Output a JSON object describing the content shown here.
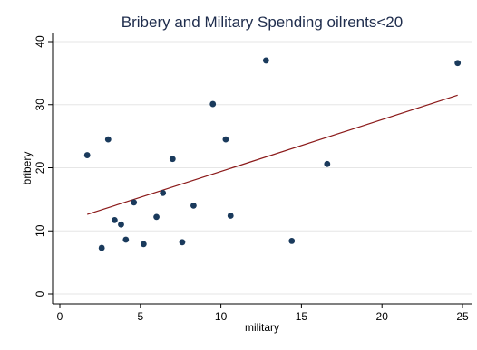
{
  "chart_data": {
    "type": "scatter",
    "title": "Bribery and Military Spending oilrents<20",
    "xlabel": "military",
    "ylabel": "bribery",
    "xlim": [
      0,
      25
    ],
    "ylim": [
      0,
      40
    ],
    "x_ticks": [
      0,
      5,
      10,
      15,
      20,
      25
    ],
    "y_ticks": [
      0,
      10,
      20,
      30,
      40
    ],
    "x_tick_labels": [
      "0",
      "5",
      "10",
      "15",
      "20",
      "25"
    ],
    "y_tick_labels": [
      "0",
      "10",
      "20",
      "30",
      "40"
    ],
    "grid": true,
    "point_color": "#1a3a5c",
    "fit_line_color": "#8b1a1a",
    "series": [
      {
        "kind": "points",
        "points": [
          {
            "x": 1.7,
            "y": 22.0
          },
          {
            "x": 2.6,
            "y": 7.3
          },
          {
            "x": 3.0,
            "y": 24.5
          },
          {
            "x": 3.4,
            "y": 11.7
          },
          {
            "x": 3.8,
            "y": 11.0
          },
          {
            "x": 4.1,
            "y": 8.6
          },
          {
            "x": 4.6,
            "y": 14.5
          },
          {
            "x": 5.2,
            "y": 7.9
          },
          {
            "x": 6.0,
            "y": 12.2
          },
          {
            "x": 6.4,
            "y": 16.0
          },
          {
            "x": 7.0,
            "y": 21.4
          },
          {
            "x": 7.6,
            "y": 8.2
          },
          {
            "x": 8.3,
            "y": 14.0
          },
          {
            "x": 9.5,
            "y": 30.1
          },
          {
            "x": 10.3,
            "y": 24.5
          },
          {
            "x": 10.6,
            "y": 12.4
          },
          {
            "x": 12.8,
            "y": 37.0
          },
          {
            "x": 14.4,
            "y": 8.4
          },
          {
            "x": 16.6,
            "y": 20.6
          },
          {
            "x": 24.7,
            "y": 36.6
          }
        ]
      },
      {
        "kind": "fit-line",
        "x": [
          1.7,
          24.7
        ],
        "y": [
          12.6,
          31.5
        ]
      }
    ]
  }
}
